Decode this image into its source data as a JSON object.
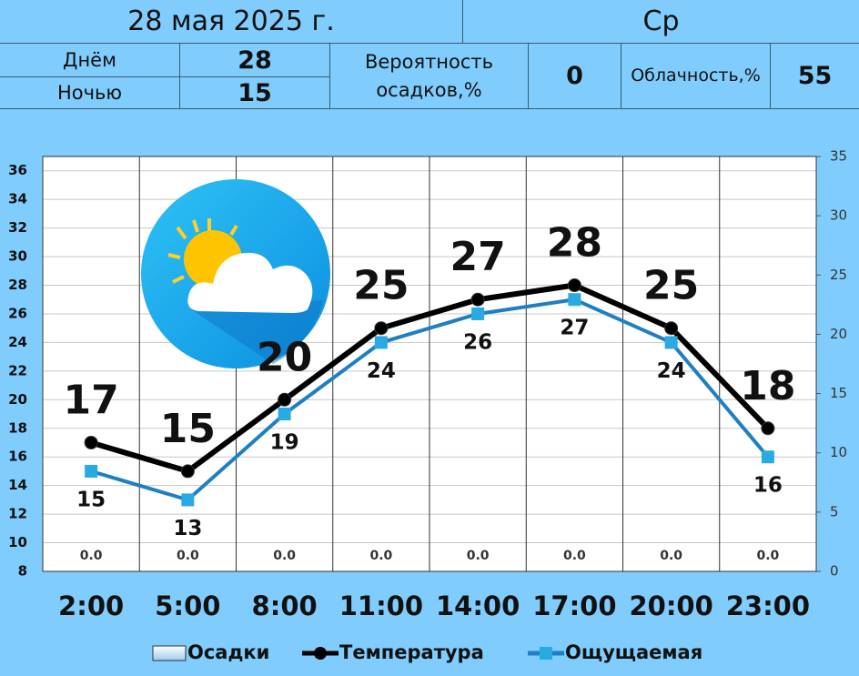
{
  "header": {
    "date": "28 мая 2025 г.",
    "weekday": "Ср"
  },
  "summary": {
    "day_label": "Днём",
    "day_value": 28,
    "night_label": "Ночью",
    "night_value": 15,
    "precip_label": "Вероятность осадков,%",
    "precip_value": 0,
    "cloud_label": "Облачность,%",
    "cloud_value": 55
  },
  "chart_data": {
    "type": "line",
    "categories": [
      "2:00",
      "5:00",
      "8:00",
      "11:00",
      "14:00",
      "17:00",
      "20:00",
      "23:00"
    ],
    "ylim": [
      8,
      37
    ],
    "yticks": [
      8,
      10,
      12,
      14,
      16,
      18,
      20,
      22,
      24,
      26,
      28,
      30,
      32,
      34,
      36
    ],
    "y2lim": [
      0,
      35
    ],
    "y2ticks": [
      0,
      5,
      10,
      15,
      20,
      25,
      30,
      35
    ],
    "grid": true,
    "series": [
      {
        "name": "Осадки",
        "type": "bar",
        "axis": "y2",
        "color": "#cfe3f5",
        "values": [
          0,
          0,
          0,
          0,
          0,
          0,
          0,
          0
        ],
        "value_labels": [
          "0.0",
          "0.0",
          "0.0",
          "0.0",
          "0.0",
          "0.0",
          "0.0",
          "0.0"
        ]
      },
      {
        "name": "Температура",
        "type": "line",
        "color": "#000000",
        "marker": "circle",
        "values": [
          17,
          15,
          20,
          25,
          27,
          28,
          25,
          18
        ]
      },
      {
        "name": "Ощущаемая",
        "type": "line",
        "color": "#1f7fc2",
        "marker": "square",
        "marker_color": "#29aae2",
        "values": [
          15,
          13,
          19,
          24,
          26,
          27,
          24,
          16
        ]
      }
    ]
  }
}
